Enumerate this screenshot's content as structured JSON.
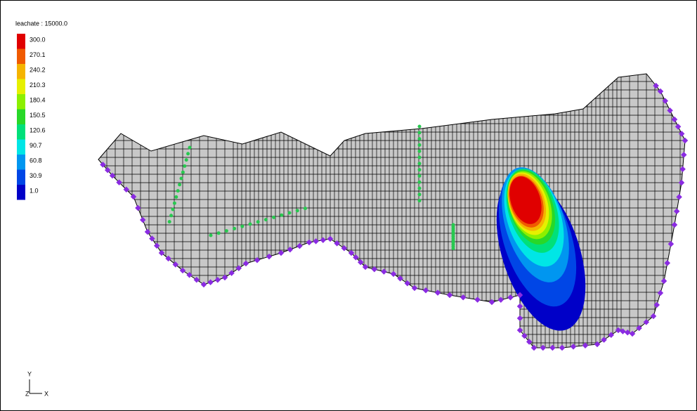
{
  "legend": {
    "title": "leachate : 15000.0",
    "items": [
      {
        "label": "300.0",
        "color": "#e00000"
      },
      {
        "label": "270.1",
        "color": "#f05a00"
      },
      {
        "label": "240.2",
        "color": "#f5b400"
      },
      {
        "label": "210.3",
        "color": "#e6f000"
      },
      {
        "label": "180.4",
        "color": "#8cf000"
      },
      {
        "label": "150.5",
        "color": "#28d828"
      },
      {
        "label": "120.6",
        "color": "#00e07a"
      },
      {
        "label": "90.7",
        "color": "#00e6e6"
      },
      {
        "label": "60.8",
        "color": "#0096f0"
      },
      {
        "label": "30.9",
        "color": "#0046e6"
      },
      {
        "label": "1.0",
        "color": "#0000c8"
      }
    ]
  },
  "triad": {
    "y": "Y",
    "z": "Z",
    "x": "X"
  }
}
